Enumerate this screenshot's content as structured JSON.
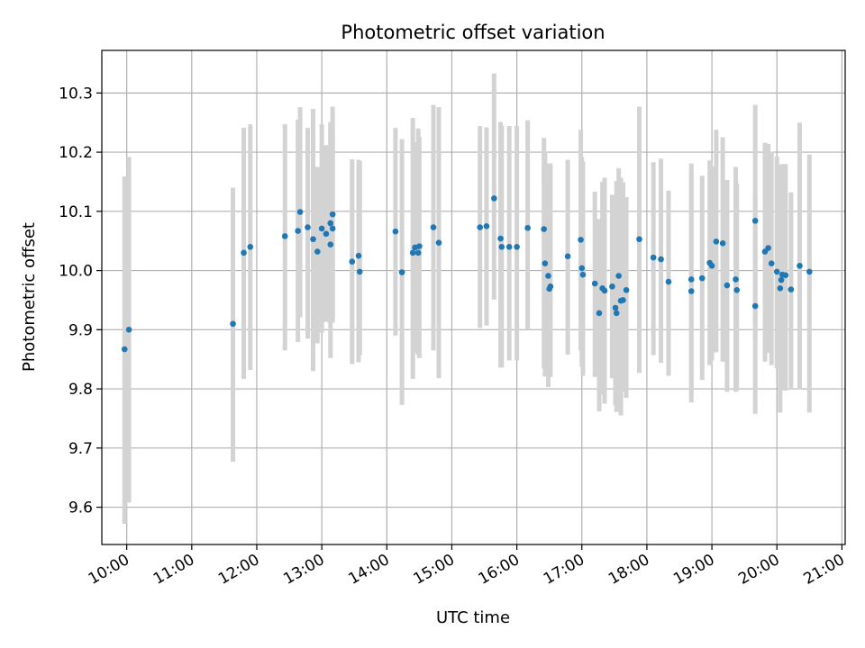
{
  "chart_data": {
    "type": "scatter",
    "title": "Photometric offset variation",
    "xlabel": "UTC time",
    "ylabel": "Photometric offset",
    "x_tick_labels": [
      "10:00",
      "11:00",
      "12:00",
      "13:00",
      "14:00",
      "15:00",
      "16:00",
      "17:00",
      "18:00",
      "19:00",
      "20:00",
      "21:00"
    ],
    "y_tick_labels": [
      "9.6",
      "9.7",
      "9.8",
      "9.9",
      "10.0",
      "10.1",
      "10.2",
      "10.3"
    ],
    "xlim": [
      "09:37",
      "21:03"
    ],
    "ylim": [
      9.537,
      10.372
    ],
    "grid": true,
    "colors": {
      "point": "#1f77b4",
      "errorbar": "#d3d3d3",
      "grid": "#b0b0b0"
    },
    "series": [
      {
        "x": [
          "09:58",
          "10:02",
          "11:38",
          "11:48",
          "11:54",
          "12:26",
          "12:38",
          "12:40",
          "12:47",
          "12:52",
          "12:56",
          "13:00",
          "13:04",
          "13:08",
          "13:08",
          "13:10",
          "13:10",
          "13:28",
          "13:34",
          "13:35",
          "14:08",
          "14:14",
          "14:24",
          "14:26",
          "14:29",
          "14:30",
          "14:43",
          "14:48",
          "15:26",
          "15:32",
          "15:39",
          "15:45",
          "15:46",
          "15:53",
          "16:00",
          "16:10",
          "16:25",
          "16:26",
          "16:29",
          "16:30",
          "16:31",
          "16:47",
          "16:59",
          "17:00",
          "17:01",
          "17:12",
          "17:16",
          "17:19",
          "17:21",
          "17:28",
          "17:31",
          "17:32",
          "17:34",
          "17:36",
          "17:38",
          "17:41",
          "17:53",
          "18:06",
          "18:13",
          "18:20",
          "18:41",
          "18:41",
          "18:51",
          "18:58",
          "19:00",
          "19:04",
          "19:10",
          "19:14",
          "19:22",
          "19:23",
          "19:40",
          "19:40",
          "19:49",
          "19:52",
          "19:55",
          "20:00",
          "20:03",
          "20:04",
          "20:05",
          "20:08",
          "20:13",
          "20:21",
          "20:30"
        ],
        "y": [
          9.867,
          9.9,
          9.91,
          10.03,
          10.04,
          10.058,
          10.067,
          10.099,
          10.073,
          10.053,
          10.032,
          10.071,
          10.062,
          10.044,
          10.08,
          10.071,
          10.095,
          10.015,
          10.025,
          9.998,
          10.066,
          9.997,
          10.03,
          10.039,
          10.03,
          10.041,
          10.073,
          10.047,
          10.073,
          10.075,
          10.122,
          10.054,
          10.04,
          10.04,
          10.04,
          10.072,
          10.07,
          10.012,
          9.991,
          9.969,
          9.973,
          10.024,
          10.052,
          10.004,
          9.993,
          9.978,
          9.928,
          9.97,
          9.966,
          9.973,
          9.937,
          9.928,
          9.991,
          9.949,
          9.95,
          9.967,
          10.053,
          10.022,
          10.019,
          9.981,
          9.965,
          9.985,
          9.987,
          10.013,
          10.008,
          10.049,
          10.046,
          9.975,
          9.985,
          9.967,
          10.084,
          9.94,
          10.032,
          10.038,
          10.012,
          9.998,
          9.97,
          9.984,
          9.993,
          9.992,
          9.968,
          10.008,
          9.998
        ],
        "yerr_lower": [
          9.572,
          9.608,
          9.677,
          9.817,
          9.832,
          9.865,
          9.879,
          9.921,
          9.885,
          9.83,
          9.877,
          9.895,
          9.913,
          9.852,
          9.909,
          9.912,
          9.919,
          9.842,
          9.845,
          9.857,
          9.89,
          9.773,
          9.817,
          9.861,
          9.857,
          9.852,
          9.865,
          9.818,
          9.903,
          9.907,
          9.951,
          9.836,
          9.836,
          9.848,
          9.848,
          9.9,
          9.835,
          9.821,
          9.803,
          9.82,
          9.82,
          9.858,
          9.865,
          9.837,
          9.822,
          9.82,
          9.762,
          9.79,
          9.775,
          9.818,
          9.772,
          9.761,
          9.806,
          9.755,
          9.795,
          9.785,
          9.827,
          9.857,
          9.844,
          9.822,
          9.79,
          9.777,
          9.815,
          9.84,
          9.848,
          9.862,
          9.846,
          9.795,
          9.795,
          9.797,
          9.888,
          9.758,
          9.846,
          9.861,
          9.84,
          9.835,
          9.76,
          9.797,
          9.81,
          9.797,
          9.8,
          9.799,
          9.76
        ],
        "yerr_upper": [
          10.159,
          10.192,
          10.14,
          10.241,
          10.247,
          10.247,
          10.255,
          10.276,
          10.241,
          10.273,
          10.175,
          10.247,
          10.212,
          10.236,
          10.251,
          10.23,
          10.277,
          10.188,
          10.187,
          10.185,
          10.241,
          10.222,
          10.258,
          10.217,
          10.24,
          10.226,
          10.28,
          10.276,
          10.244,
          10.242,
          10.333,
          10.251,
          10.245,
          10.244,
          10.244,
          10.254,
          10.224,
          10.201,
          10.141,
          10.181,
          10.181,
          10.187,
          10.238,
          10.192,
          10.184,
          10.133,
          10.087,
          10.15,
          10.157,
          10.128,
          10.102,
          10.151,
          10.173,
          10.157,
          10.149,
          10.124,
          10.277,
          10.183,
          10.189,
          10.135,
          10.181,
          10.164,
          10.16,
          10.186,
          10.176,
          10.238,
          10.225,
          10.153,
          10.175,
          10.147,
          10.28,
          10.127,
          10.216,
          10.214,
          10.201,
          10.193,
          10.175,
          10.179,
          10.18,
          10.18,
          10.132,
          10.25,
          10.196
        ]
      }
    ]
  }
}
